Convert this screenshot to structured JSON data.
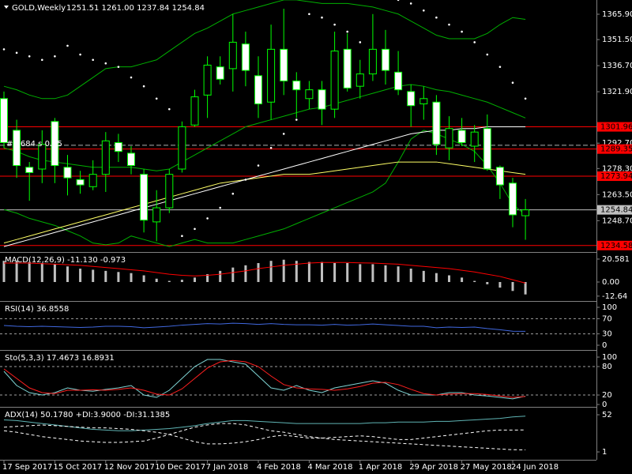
{
  "chart_data": [
    {
      "type": "candlestick",
      "title": "GOLD,Weekly",
      "ohlc_label": "1251.51 1261.00 1237.84 1254.84",
      "annotation": "# 2684 s 0.05",
      "categories": [
        "17 Sep 2017",
        null,
        null,
        null,
        "15 Oct 2017",
        null,
        null,
        null,
        "12 Nov 2017",
        null,
        null,
        null,
        "10 Dec 2017",
        null,
        null,
        null,
        "7 Jan 2018",
        null,
        null,
        null,
        "4 Feb 2018",
        null,
        null,
        null,
        "4 Mar 2018",
        null,
        null,
        null,
        "1 Apr 2018",
        null,
        null,
        null,
        "29 Apr 2018",
        null,
        null,
        null,
        "27 May 2018",
        null,
        null,
        null,
        "24 Jun 2018",
        null
      ],
      "open": [
        1318,
        1300,
        1279,
        1278,
        1305,
        1279,
        1272,
        1268,
        1275,
        1293,
        1287,
        1275,
        1248,
        1256,
        1278,
        1303,
        1320,
        1336,
        1335,
        1349,
        1331,
        1316,
        1346,
        1328,
        1318,
        1323,
        1312,
        1346,
        1325,
        1332,
        1346,
        1333,
        1322,
        1315,
        1316,
        1290,
        1300,
        1291,
        1301,
        1279,
        1270,
        1251.51
      ],
      "high": [
        1322,
        1306,
        1282,
        1300,
        1307,
        1286,
        1277,
        1283,
        1299,
        1298,
        1291,
        1278,
        1266,
        1278,
        1305,
        1323,
        1342,
        1342,
        1366,
        1356,
        1342,
        1360,
        1369,
        1333,
        1328,
        1328,
        1356,
        1355,
        1340,
        1366,
        1357,
        1345,
        1326,
        1325,
        1320,
        1308,
        1307,
        1303,
        1309,
        1280,
        1273,
        1261.0
      ],
      "low": [
        1290,
        1273,
        1260,
        1270,
        1270,
        1263,
        1264,
        1266,
        1265,
        1282,
        1275,
        1242,
        1237,
        1253,
        1276,
        1302,
        1307,
        1326,
        1322,
        1325,
        1307,
        1306,
        1320,
        1307,
        1312,
        1303,
        1307,
        1322,
        1318,
        1328,
        1326,
        1320,
        1302,
        1306,
        1286,
        1283,
        1291,
        1282,
        1277,
        1261,
        1245,
        1237.84
      ],
      "close": [
        1293,
        1280,
        1276,
        1292,
        1280,
        1273,
        1269,
        1275,
        1294,
        1288,
        1280,
        1249,
        1256,
        1275,
        1302,
        1319,
        1337,
        1329,
        1350,
        1334,
        1315,
        1346,
        1328,
        1323,
        1323,
        1312,
        1345,
        1324,
        1332,
        1346,
        1334,
        1323,
        1314,
        1318,
        1292,
        1301,
        1293,
        1299,
        1278,
        1269,
        1252,
        1254.84
      ],
      "up_color": "#000000",
      "down_color": "#ffffff",
      "wick_color": "#00ff00",
      "series": [
        {
          "kind": "line",
          "color": "#00b000",
          "values": [
            1325,
            1323,
            1320,
            1318,
            1318,
            1320,
            1325,
            1330,
            1335,
            1336,
            1336,
            1338,
            1340,
            1345,
            1350,
            1355,
            1358,
            1362,
            1366,
            1368,
            1370,
            1372,
            1374,
            1374,
            1373,
            1372,
            1372,
            1372,
            1371,
            1370,
            1368,
            1366,
            1362,
            1358,
            1354,
            1352,
            1352,
            1352,
            1355,
            1360,
            1364,
            1363
          ]
        },
        {
          "kind": "line",
          "color": "#00b000",
          "values": [
            1290,
            1288,
            1285,
            1283,
            1282,
            1281,
            1280,
            1279,
            1279,
            1279,
            1279,
            1278,
            1277,
            1278,
            1282,
            1286,
            1290,
            1294,
            1298,
            1302,
            1304,
            1306,
            1308,
            1310,
            1312,
            1313,
            1315,
            1317,
            1319,
            1321,
            1323,
            1325,
            1326,
            1325,
            1323,
            1322,
            1320,
            1318,
            1316,
            1313,
            1310,
            1307
          ]
        },
        {
          "kind": "line",
          "color": "#00b000",
          "values": [
            1255,
            1253,
            1250,
            1248,
            1246,
            1243,
            1240,
            1236,
            1235,
            1236,
            1240,
            1238,
            1236,
            1234,
            1236,
            1238,
            1236,
            1236,
            1236,
            1238,
            1240,
            1242,
            1244,
            1247,
            1250,
            1253,
            1256,
            1259,
            1262,
            1265,
            1270,
            1282,
            1295,
            1300,
            1298,
            1295,
            1292,
            1288,
            1280,
            1270,
            1258,
            1252
          ]
        },
        {
          "kind": "line",
          "color": "#ffff66",
          "values": [
            1236,
            1238,
            1240,
            1242,
            1244,
            1246,
            1248,
            1250,
            1252,
            1254,
            1256,
            1258,
            1260,
            1262,
            1264,
            1266,
            1268,
            1270,
            1271,
            1272,
            1273,
            1274,
            1275,
            1275,
            1275,
            1276,
            1277,
            1278,
            1279,
            1280,
            1281,
            1282,
            1282,
            1282,
            1282,
            1281,
            1280,
            1279,
            1278,
            1277,
            1276,
            1275
          ]
        },
        {
          "kind": "line",
          "color": "#ffffff",
          "values": [
            1234,
            1236,
            1238,
            1240,
            1242,
            1244,
            1246,
            1248,
            1250,
            1252,
            1254,
            1256,
            1258,
            1260,
            1262,
            1264,
            1266,
            1268,
            1270,
            1272,
            1274,
            1276,
            1278,
            1280,
            1282,
            1284,
            1286,
            1288,
            1290,
            1292,
            1294,
            1296,
            1298,
            1299,
            1300,
            1300,
            1301,
            1301,
            1302,
            1302,
            1302,
            1302
          ]
        },
        {
          "kind": "dots",
          "color": "#ffffff",
          "values": [
            1346,
            1344,
            1342,
            1340,
            1342,
            1348,
            1343,
            1340,
            1338,
            1336,
            1330,
            1325,
            1318,
            1312,
            1240,
            1244,
            1250,
            1256,
            1264,
            1272,
            1280,
            1290,
            1298,
            1306,
            1366,
            1364,
            1360,
            1356,
            1350,
            1345,
            1340,
            1374,
            1372,
            1368,
            1364,
            1360,
            1356,
            1350,
            1343,
            1336,
            1327,
            1318
          ]
        }
      ],
      "levels": [
        {
          "value": 1301.96,
          "label": "1301.96",
          "color": "#ff0000"
        },
        {
          "value": 1289.35,
          "label": "1289.35",
          "color": "#ff0000"
        },
        {
          "value": 1273.94,
          "label": "1273.94",
          "color": "#ff0000"
        },
        {
          "value": 1254.84,
          "label": "1254.84",
          "color": "#c0c0c0"
        },
        {
          "value": 1234.58,
          "label": "1234.58",
          "color": "#ff0000"
        }
      ],
      "dashed_levels": [
        1291.5
      ],
      "ylim": [
        1231.35,
        1373.97
      ],
      "yticks": [
        {
          "value": 1365.9,
          "label": "1365.90"
        },
        {
          "value": 1351.5,
          "label": "1351.50"
        },
        {
          "value": 1336.7,
          "label": "1336.70"
        },
        {
          "value": 1321.9,
          "label": "1321.90"
        },
        {
          "value": 1292.7,
          "label": "1292.70"
        },
        {
          "value": 1278.3,
          "label": "1278.30"
        },
        {
          "value": 1263.5,
          "label": "1263.50"
        },
        {
          "value": 1248.7,
          "label": "1248.70"
        }
      ]
    },
    {
      "type": "macd",
      "title": "MACD(12,26,9) -11.130 -0.973",
      "color": "#c0c0c0",
      "signal_color": "#ff0000",
      "values": [
        19,
        19,
        18,
        17,
        16,
        14,
        12,
        11,
        10,
        9,
        8,
        6,
        3,
        1,
        2,
        4,
        7,
        10,
        13,
        15,
        17,
        19,
        20,
        19,
        18,
        18,
        17,
        17,
        16,
        16,
        15,
        14,
        12,
        10,
        8,
        6,
        4,
        1,
        -2,
        -5,
        -8,
        -11.13
      ],
      "signal": [
        17,
        17,
        17,
        16.5,
        16,
        15.5,
        15,
        14,
        13,
        12,
        11,
        10,
        8.5,
        7,
        6,
        5.5,
        6,
        7,
        8.5,
        10,
        12,
        13.5,
        15,
        16,
        17,
        17.5,
        17.5,
        17.5,
        17.2,
        17,
        16.5,
        16,
        15,
        14,
        13,
        12,
        10.5,
        9,
        7,
        5,
        2,
        -0.973
      ],
      "ylim": [
        -16.3,
        25.5
      ],
      "yticks": [
        20.581,
        {
          "value": 0,
          "label": "0.00"
        },
        -12.64
      ]
    },
    {
      "type": "line",
      "title": "RSI(14) 36.8558",
      "levels": [
        70,
        30
      ],
      "series": [
        {
          "color": "#4169e1",
          "values": [
            52,
            50,
            49,
            50,
            49,
            48,
            47,
            48,
            50,
            50,
            49,
            46,
            48,
            50,
            53,
            55,
            57,
            56,
            58,
            57,
            55,
            57,
            55,
            54,
            54,
            53,
            55,
            53,
            54,
            56,
            54,
            52,
            50,
            50,
            46,
            48,
            47,
            48,
            44,
            41,
            37,
            36.8558
          ]
        }
      ],
      "ylim": [
        -10.4,
        112.5
      ],
      "yticks": [
        100,
        70,
        30,
        0
      ]
    },
    {
      "type": "line",
      "title": "Sto(5,3,3) 17.4673 16.8931",
      "levels": [
        80,
        20
      ],
      "series": [
        {
          "color": "#7fd4d4",
          "values": [
            70,
            40,
            25,
            20,
            25,
            35,
            30,
            28,
            32,
            35,
            40,
            20,
            15,
            30,
            55,
            80,
            95,
            95,
            90,
            85,
            60,
            35,
            30,
            40,
            30,
            25,
            35,
            40,
            45,
            50,
            45,
            30,
            20,
            20,
            20,
            25,
            25,
            20,
            18,
            15,
            12,
            17.4673
          ]
        },
        {
          "color": "#ff2020",
          "values": [
            75,
            55,
            35,
            25,
            23,
            30,
            30,
            31,
            30,
            32,
            35,
            30,
            22,
            20,
            33,
            55,
            77,
            90,
            93,
            90,
            80,
            60,
            42,
            35,
            33,
            32,
            30,
            33,
            38,
            45,
            47,
            42,
            32,
            23,
            20,
            22,
            23,
            23,
            21,
            18,
            15,
            16.8931
          ]
        }
      ],
      "ylim": [
        -3.3,
        111.7
      ],
      "yticks": [
        100,
        80,
        20,
        0
      ]
    },
    {
      "type": "line",
      "title": "ADX(14) 50.1780 +DI:3.9000 -DI:31.1385",
      "levels": [],
      "series": [
        {
          "color": "#5fb4b4",
          "dash": false,
          "values": [
            45,
            44,
            42,
            40,
            38,
            36,
            34,
            32,
            31,
            30,
            30,
            31,
            32,
            33,
            35,
            37,
            40,
            42,
            44,
            44,
            43,
            42,
            41,
            40,
            40,
            40,
            40,
            40,
            40,
            41,
            41,
            42,
            42,
            42,
            43,
            43,
            44,
            45,
            46,
            47,
            49,
            50.178
          ]
        },
        {
          "color": "#ffffff",
          "dash": true,
          "values": [
            30,
            28,
            25,
            22,
            20,
            18,
            16,
            15,
            14,
            14,
            15,
            16,
            20,
            25,
            30,
            35,
            38,
            40,
            40,
            38,
            34,
            30,
            28,
            25,
            22,
            20,
            18,
            17,
            16,
            15,
            14,
            13,
            12,
            11,
            10,
            9,
            8,
            7,
            6,
            5,
            4,
            3.9
          ]
        },
        {
          "color": "#ffffff",
          "dash": true,
          "values": [
            35,
            36,
            37,
            38,
            37,
            36,
            35,
            34,
            34,
            33,
            32,
            30,
            28,
            25,
            20,
            15,
            12,
            12,
            13,
            15,
            18,
            22,
            24,
            22,
            20,
            20,
            21,
            22,
            23,
            22,
            20,
            18,
            18,
            20,
            22,
            24,
            26,
            28,
            30,
            31,
            31,
            31.1385
          ]
        }
      ],
      "ylim": [
        -9.8,
        60.7
      ],
      "yticks": [
        52,
        1
      ]
    }
  ]
}
